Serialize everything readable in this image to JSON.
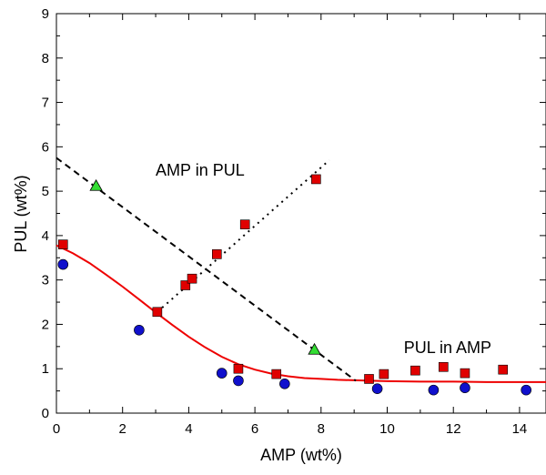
{
  "chart_data": {
    "type": "scatter",
    "title": "",
    "xlabel": "AMP (wt%)",
    "ylabel": "PUL (wt%)",
    "xlim": [
      0,
      14.8
    ],
    "ylim": [
      0,
      9
    ],
    "xticks": [
      "0",
      "2",
      "4",
      "6",
      "8",
      "10",
      "12",
      "14"
    ],
    "yticks": [
      "0",
      "1",
      "2",
      "3",
      "4",
      "5",
      "6",
      "7",
      "8",
      "9"
    ],
    "grid": false,
    "annotations": [
      {
        "text": "AMP in PUL",
        "x": 3.0,
        "y": 5.35
      },
      {
        "text": "PUL in AMP",
        "x": 10.5,
        "y": 1.35
      }
    ],
    "colors": {
      "circle": "#1010cc",
      "square": "#e00000",
      "triangle": "#33dd33",
      "fit": "#ee0000",
      "dashed": "#000000",
      "dotted": "#000000"
    },
    "series": [
      {
        "marker": "circle",
        "x": [
          0.2,
          2.5,
          5.0,
          5.5,
          6.9,
          9.7,
          11.4,
          12.35,
          14.2
        ],
        "y": [
          3.35,
          1.87,
          0.9,
          0.73,
          0.66,
          0.55,
          0.52,
          0.57,
          0.52
        ]
      },
      {
        "marker": "square",
        "x": [
          0.2,
          3.05,
          3.9,
          4.1,
          4.85,
          5.5,
          5.7,
          6.65,
          7.85,
          9.45,
          9.9,
          10.85,
          11.7,
          12.35,
          13.5
        ],
        "y": [
          3.8,
          2.28,
          2.88,
          3.03,
          3.58,
          1.0,
          4.25,
          0.88,
          5.27,
          0.77,
          0.88,
          0.96,
          1.04,
          0.9,
          0.98
        ]
      },
      {
        "marker": "triangle",
        "x": [
          1.2,
          7.8
        ],
        "y": [
          5.12,
          1.43
        ]
      },
      {
        "line": "solid-fit",
        "x": [
          0,
          0.5,
          1,
          1.5,
          2,
          2.5,
          3,
          3.5,
          4,
          4.5,
          5,
          5.5,
          6,
          6.5,
          7,
          7.5,
          8,
          8.5,
          9,
          9.5,
          10,
          11,
          12,
          13,
          14,
          14.8
        ],
        "y": [
          3.78,
          3.6,
          3.38,
          3.12,
          2.85,
          2.56,
          2.27,
          1.99,
          1.72,
          1.48,
          1.27,
          1.1,
          0.98,
          0.89,
          0.83,
          0.79,
          0.77,
          0.75,
          0.74,
          0.73,
          0.72,
          0.71,
          0.71,
          0.7,
          0.7,
          0.7
        ]
      },
      {
        "line": "dashed",
        "x": [
          0,
          9.05
        ],
        "y": [
          5.75,
          0.73
        ]
      },
      {
        "line": "dotted",
        "x": [
          3.05,
          8.25
        ],
        "y": [
          2.28,
          5.7
        ]
      }
    ]
  }
}
